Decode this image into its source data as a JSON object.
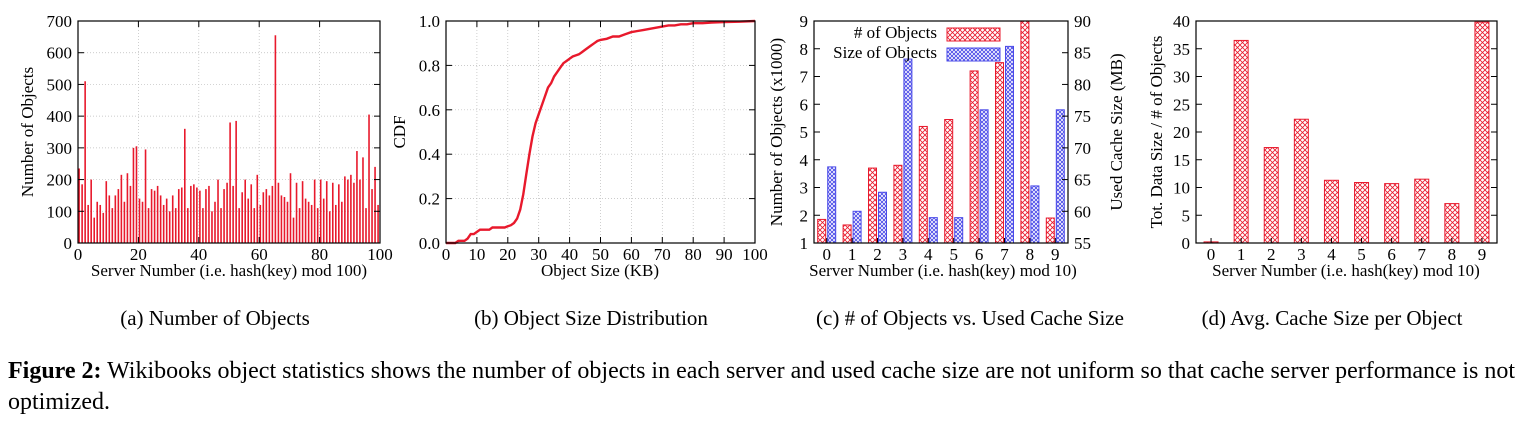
{
  "colors": {
    "red": "#e8192c",
    "blue": "#4a4ae8",
    "black": "#000000",
    "grid": "#bbbbbb"
  },
  "subcaptions": {
    "a": "(a)  Number of Objects",
    "b": "(b)  Object Size Distribution",
    "c": "(c)  # of Objects vs. Used Cache Size",
    "d": "(d)  Avg. Cache Size per Object"
  },
  "caption": {
    "label": "Figure 2:",
    "text": " Wikibooks object statistics shows the number of objects in each server and used cache size are not uniform so that cache server performance is not optimized."
  },
  "chart_data": [
    {
      "id": "a",
      "type": "bar",
      "title": "Number of Objects",
      "xlabel": "Server Number (i.e. hash(key) mod 100)",
      "ylabel": "Number of Objects",
      "xlim": [
        0,
        100
      ],
      "ylim": [
        0,
        700
      ],
      "xticks": [
        0,
        20,
        40,
        60,
        80,
        100
      ],
      "yticks": [
        0,
        100,
        200,
        300,
        400,
        500,
        600,
        700
      ],
      "x": [
        0,
        1,
        2,
        3,
        4,
        5,
        6,
        7,
        8,
        9,
        10,
        11,
        12,
        13,
        14,
        15,
        16,
        17,
        18,
        19,
        20,
        21,
        22,
        23,
        24,
        25,
        26,
        27,
        28,
        29,
        30,
        31,
        32,
        33,
        34,
        35,
        36,
        37,
        38,
        39,
        40,
        41,
        42,
        43,
        44,
        45,
        46,
        47,
        48,
        49,
        50,
        51,
        52,
        53,
        54,
        55,
        56,
        57,
        58,
        59,
        60,
        61,
        62,
        63,
        64,
        65,
        66,
        67,
        68,
        69,
        70,
        71,
        72,
        73,
        74,
        75,
        76,
        77,
        78,
        79,
        80,
        81,
        82,
        83,
        84,
        85,
        86,
        87,
        88,
        89,
        90,
        91,
        92,
        93,
        94,
        95,
        96,
        97,
        98,
        99
      ],
      "values": [
        235,
        185,
        510,
        120,
        200,
        80,
        130,
        120,
        95,
        195,
        150,
        110,
        150,
        170,
        215,
        130,
        220,
        180,
        300,
        305,
        140,
        130,
        295,
        110,
        170,
        165,
        180,
        150,
        120,
        140,
        100,
        150,
        110,
        170,
        175,
        360,
        110,
        180,
        185,
        175,
        165,
        110,
        170,
        180,
        100,
        130,
        200,
        110,
        170,
        190,
        380,
        180,
        385,
        110,
        160,
        200,
        140,
        185,
        110,
        215,
        120,
        160,
        170,
        150,
        180,
        655,
        190,
        150,
        145,
        130,
        220,
        80,
        190,
        110,
        195,
        140,
        130,
        120,
        200,
        110,
        200,
        140,
        195,
        100,
        190,
        120,
        185,
        130,
        210,
        200,
        215,
        190,
        290,
        200,
        270,
        110,
        405,
        170,
        240,
        120
      ]
    },
    {
      "id": "b",
      "type": "line",
      "title": "Object Size Distribution",
      "xlabel": "Object Size (KB)",
      "ylabel": "CDF",
      "xlim": [
        0,
        100
      ],
      "ylim": [
        0,
        1.0
      ],
      "xticks": [
        0,
        10,
        20,
        30,
        40,
        50,
        60,
        70,
        80,
        90,
        100
      ],
      "yticks": [
        0.0,
        0.2,
        0.4,
        0.6,
        0.8,
        1.0
      ],
      "x": [
        0,
        1,
        2,
        3,
        4,
        5,
        6,
        7,
        8,
        9,
        10,
        11,
        12,
        13,
        14,
        15,
        16,
        17,
        18,
        19,
        20,
        21,
        22,
        23,
        24,
        25,
        26,
        27,
        28,
        29,
        30,
        31,
        32,
        33,
        34,
        35,
        36,
        37,
        38,
        39,
        40,
        41,
        42,
        43,
        44,
        45,
        46,
        47,
        48,
        49,
        50,
        52,
        54,
        56,
        58,
        60,
        62,
        64,
        66,
        68,
        70,
        72,
        74,
        76,
        78,
        80,
        83,
        86,
        90,
        95,
        100
      ],
      "y": [
        0,
        0,
        0,
        0,
        0.01,
        0.01,
        0.01,
        0.02,
        0.04,
        0.04,
        0.05,
        0.06,
        0.06,
        0.06,
        0.06,
        0.07,
        0.07,
        0.07,
        0.07,
        0.07,
        0.075,
        0.08,
        0.09,
        0.11,
        0.15,
        0.22,
        0.31,
        0.4,
        0.48,
        0.54,
        0.58,
        0.62,
        0.66,
        0.7,
        0.72,
        0.75,
        0.77,
        0.79,
        0.81,
        0.82,
        0.83,
        0.84,
        0.845,
        0.85,
        0.86,
        0.87,
        0.88,
        0.89,
        0.9,
        0.91,
        0.915,
        0.92,
        0.93,
        0.93,
        0.94,
        0.95,
        0.955,
        0.96,
        0.965,
        0.97,
        0.975,
        0.98,
        0.98,
        0.985,
        0.985,
        0.99,
        0.99,
        0.993,
        0.995,
        0.997,
        1.0
      ]
    },
    {
      "id": "c",
      "type": "bar",
      "title": "# of Objects vs. Used Cache Size",
      "xlabel": "Server Number (i.e. hash(key) mod 10)",
      "ylabel": "Number of Objects (x1000)",
      "y2label": "Used Cache Size (MB)",
      "categories": [
        "0",
        "1",
        "2",
        "3",
        "4",
        "5",
        "6",
        "7",
        "8",
        "9"
      ],
      "ylim": [
        1,
        9
      ],
      "y2lim": [
        55,
        90
      ],
      "yticks": [
        1,
        2,
        3,
        4,
        5,
        6,
        7,
        8,
        9
      ],
      "y2ticks": [
        55,
        60,
        65,
        70,
        75,
        80,
        85,
        90
      ],
      "series": [
        {
          "name": "# of Objects",
          "axis": "left",
          "values": [
            1.85,
            1.65,
            3.7,
            3.8,
            5.2,
            5.45,
            7.2,
            7.5,
            9.0,
            1.9
          ]
        },
        {
          "name": "Size of Objects",
          "axis": "right",
          "values": [
            67,
            60,
            63,
            84,
            59,
            59,
            76,
            86,
            64,
            76
          ]
        }
      ],
      "legend": [
        "# of Objects",
        "Size of Objects"
      ],
      "legend_position": "top-left"
    },
    {
      "id": "d",
      "type": "bar",
      "title": "Avg. Cache Size per Object",
      "xlabel": "Server Number (i.e. hash(key) mod 10)",
      "ylabel": "Tot. Data Size / # of Objects",
      "categories": [
        "0",
        "1",
        "2",
        "3",
        "4",
        "5",
        "6",
        "7",
        "8",
        "9"
      ],
      "ylim": [
        0,
        40
      ],
      "yticks": [
        0,
        5,
        10,
        15,
        20,
        25,
        30,
        35,
        40
      ],
      "values": [
        0.2,
        36.5,
        17.2,
        22.3,
        11.3,
        10.9,
        10.7,
        11.5,
        7.1,
        39.8
      ]
    }
  ]
}
